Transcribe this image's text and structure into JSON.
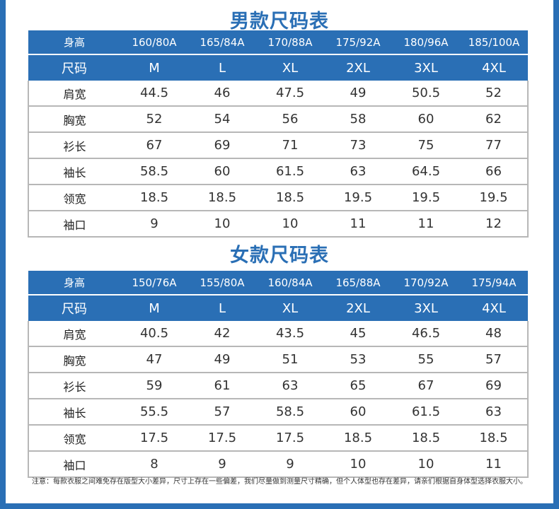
{
  "men": {
    "title": "男款尺码表",
    "height_label": "身高",
    "heights": [
      "160/80A",
      "165/84A",
      "170/88A",
      "175/92A",
      "180/96A",
      "185/100A"
    ],
    "size_label": "尺码",
    "sizes": [
      "M",
      "L",
      "XL",
      "2XL",
      "3XL",
      "4XL"
    ],
    "rows": [
      {
        "label": "肩宽",
        "values": [
          "44.5",
          "46",
          "47.5",
          "49",
          "50.5",
          "52"
        ]
      },
      {
        "label": "胸宽",
        "values": [
          "52",
          "54",
          "56",
          "58",
          "60",
          "62"
        ]
      },
      {
        "label": "衫长",
        "values": [
          "67",
          "69",
          "71",
          "73",
          "75",
          "77"
        ]
      },
      {
        "label": "袖长",
        "values": [
          "58.5",
          "60",
          "61.5",
          "63",
          "64.5",
          "66"
        ]
      },
      {
        "label": "领宽",
        "values": [
          "18.5",
          "18.5",
          "18.5",
          "19.5",
          "19.5",
          "19.5"
        ]
      },
      {
        "label": "袖口",
        "values": [
          "9",
          "10",
          "10",
          "11",
          "11",
          "12"
        ]
      }
    ]
  },
  "women": {
    "title": "女款尺码表",
    "height_label": "身高",
    "heights": [
      "150/76A",
      "155/80A",
      "160/84A",
      "165/88A",
      "170/92A",
      "175/94A"
    ],
    "size_label": "尺码",
    "sizes": [
      "M",
      "L",
      "XL",
      "2XL",
      "3XL",
      "4XL"
    ],
    "rows": [
      {
        "label": "肩宽",
        "values": [
          "40.5",
          "42",
          "43.5",
          "45",
          "46.5",
          "48"
        ]
      },
      {
        "label": "胸宽",
        "values": [
          "47",
          "49",
          "51",
          "53",
          "55",
          "57"
        ]
      },
      {
        "label": "衫长",
        "values": [
          "59",
          "61",
          "63",
          "65",
          "67",
          "69"
        ]
      },
      {
        "label": "袖长",
        "values": [
          "55.5",
          "57",
          "58.5",
          "60",
          "61.5",
          "63"
        ]
      },
      {
        "label": "领宽",
        "values": [
          "17.5",
          "17.5",
          "17.5",
          "18.5",
          "18.5",
          "18.5"
        ]
      },
      {
        "label": "袖口",
        "values": [
          "8",
          "9",
          "9",
          "10",
          "10",
          "11"
        ]
      }
    ]
  },
  "note": "注意：每款衣服之间难免存在版型大小差异，尺寸上存在一些偏差，我们尽量做到测量尺寸精确，但个人体型也存在差异，请亲们根据自身体型选择衣服大小。",
  "colors": {
    "accent": "#2a6fb5",
    "border": "#b7b7b7",
    "text": "#333333"
  }
}
